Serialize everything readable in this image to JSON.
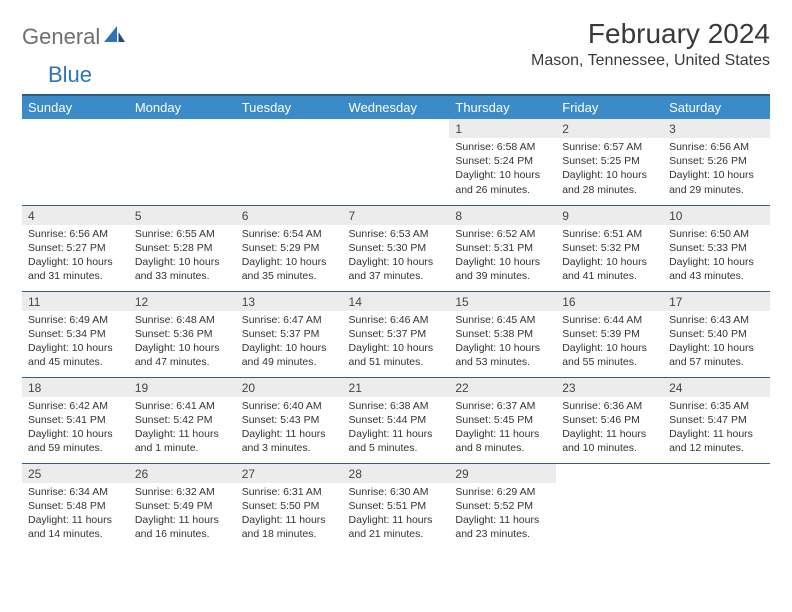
{
  "logo": {
    "word1": "General",
    "word2": "Blue"
  },
  "header": {
    "month_title": "February 2024",
    "location": "Mason, Tennessee, United States"
  },
  "colors": {
    "header_bg": "#3b8bc8",
    "header_border": "#2e5d8a",
    "daynum_bg": "#ececec",
    "logo_gray": "#6f6f6f",
    "logo_blue": "#2e75b6"
  },
  "weekdays": [
    "Sunday",
    "Monday",
    "Tuesday",
    "Wednesday",
    "Thursday",
    "Friday",
    "Saturday"
  ],
  "weeks": [
    [
      null,
      null,
      null,
      null,
      {
        "n": "1",
        "sr": "Sunrise: 6:58 AM",
        "ss": "Sunset: 5:24 PM",
        "dl": "Daylight: 10 hours and 26 minutes."
      },
      {
        "n": "2",
        "sr": "Sunrise: 6:57 AM",
        "ss": "Sunset: 5:25 PM",
        "dl": "Daylight: 10 hours and 28 minutes."
      },
      {
        "n": "3",
        "sr": "Sunrise: 6:56 AM",
        "ss": "Sunset: 5:26 PM",
        "dl": "Daylight: 10 hours and 29 minutes."
      }
    ],
    [
      {
        "n": "4",
        "sr": "Sunrise: 6:56 AM",
        "ss": "Sunset: 5:27 PM",
        "dl": "Daylight: 10 hours and 31 minutes."
      },
      {
        "n": "5",
        "sr": "Sunrise: 6:55 AM",
        "ss": "Sunset: 5:28 PM",
        "dl": "Daylight: 10 hours and 33 minutes."
      },
      {
        "n": "6",
        "sr": "Sunrise: 6:54 AM",
        "ss": "Sunset: 5:29 PM",
        "dl": "Daylight: 10 hours and 35 minutes."
      },
      {
        "n": "7",
        "sr": "Sunrise: 6:53 AM",
        "ss": "Sunset: 5:30 PM",
        "dl": "Daylight: 10 hours and 37 minutes."
      },
      {
        "n": "8",
        "sr": "Sunrise: 6:52 AM",
        "ss": "Sunset: 5:31 PM",
        "dl": "Daylight: 10 hours and 39 minutes."
      },
      {
        "n": "9",
        "sr": "Sunrise: 6:51 AM",
        "ss": "Sunset: 5:32 PM",
        "dl": "Daylight: 10 hours and 41 minutes."
      },
      {
        "n": "10",
        "sr": "Sunrise: 6:50 AM",
        "ss": "Sunset: 5:33 PM",
        "dl": "Daylight: 10 hours and 43 minutes."
      }
    ],
    [
      {
        "n": "11",
        "sr": "Sunrise: 6:49 AM",
        "ss": "Sunset: 5:34 PM",
        "dl": "Daylight: 10 hours and 45 minutes."
      },
      {
        "n": "12",
        "sr": "Sunrise: 6:48 AM",
        "ss": "Sunset: 5:36 PM",
        "dl": "Daylight: 10 hours and 47 minutes."
      },
      {
        "n": "13",
        "sr": "Sunrise: 6:47 AM",
        "ss": "Sunset: 5:37 PM",
        "dl": "Daylight: 10 hours and 49 minutes."
      },
      {
        "n": "14",
        "sr": "Sunrise: 6:46 AM",
        "ss": "Sunset: 5:37 PM",
        "dl": "Daylight: 10 hours and 51 minutes."
      },
      {
        "n": "15",
        "sr": "Sunrise: 6:45 AM",
        "ss": "Sunset: 5:38 PM",
        "dl": "Daylight: 10 hours and 53 minutes."
      },
      {
        "n": "16",
        "sr": "Sunrise: 6:44 AM",
        "ss": "Sunset: 5:39 PM",
        "dl": "Daylight: 10 hours and 55 minutes."
      },
      {
        "n": "17",
        "sr": "Sunrise: 6:43 AM",
        "ss": "Sunset: 5:40 PM",
        "dl": "Daylight: 10 hours and 57 minutes."
      }
    ],
    [
      {
        "n": "18",
        "sr": "Sunrise: 6:42 AM",
        "ss": "Sunset: 5:41 PM",
        "dl": "Daylight: 10 hours and 59 minutes."
      },
      {
        "n": "19",
        "sr": "Sunrise: 6:41 AM",
        "ss": "Sunset: 5:42 PM",
        "dl": "Daylight: 11 hours and 1 minute."
      },
      {
        "n": "20",
        "sr": "Sunrise: 6:40 AM",
        "ss": "Sunset: 5:43 PM",
        "dl": "Daylight: 11 hours and 3 minutes."
      },
      {
        "n": "21",
        "sr": "Sunrise: 6:38 AM",
        "ss": "Sunset: 5:44 PM",
        "dl": "Daylight: 11 hours and 5 minutes."
      },
      {
        "n": "22",
        "sr": "Sunrise: 6:37 AM",
        "ss": "Sunset: 5:45 PM",
        "dl": "Daylight: 11 hours and 8 minutes."
      },
      {
        "n": "23",
        "sr": "Sunrise: 6:36 AM",
        "ss": "Sunset: 5:46 PM",
        "dl": "Daylight: 11 hours and 10 minutes."
      },
      {
        "n": "24",
        "sr": "Sunrise: 6:35 AM",
        "ss": "Sunset: 5:47 PM",
        "dl": "Daylight: 11 hours and 12 minutes."
      }
    ],
    [
      {
        "n": "25",
        "sr": "Sunrise: 6:34 AM",
        "ss": "Sunset: 5:48 PM",
        "dl": "Daylight: 11 hours and 14 minutes."
      },
      {
        "n": "26",
        "sr": "Sunrise: 6:32 AM",
        "ss": "Sunset: 5:49 PM",
        "dl": "Daylight: 11 hours and 16 minutes."
      },
      {
        "n": "27",
        "sr": "Sunrise: 6:31 AM",
        "ss": "Sunset: 5:50 PM",
        "dl": "Daylight: 11 hours and 18 minutes."
      },
      {
        "n": "28",
        "sr": "Sunrise: 6:30 AM",
        "ss": "Sunset: 5:51 PM",
        "dl": "Daylight: 11 hours and 21 minutes."
      },
      {
        "n": "29",
        "sr": "Sunrise: 6:29 AM",
        "ss": "Sunset: 5:52 PM",
        "dl": "Daylight: 11 hours and 23 minutes."
      },
      null,
      null
    ]
  ]
}
